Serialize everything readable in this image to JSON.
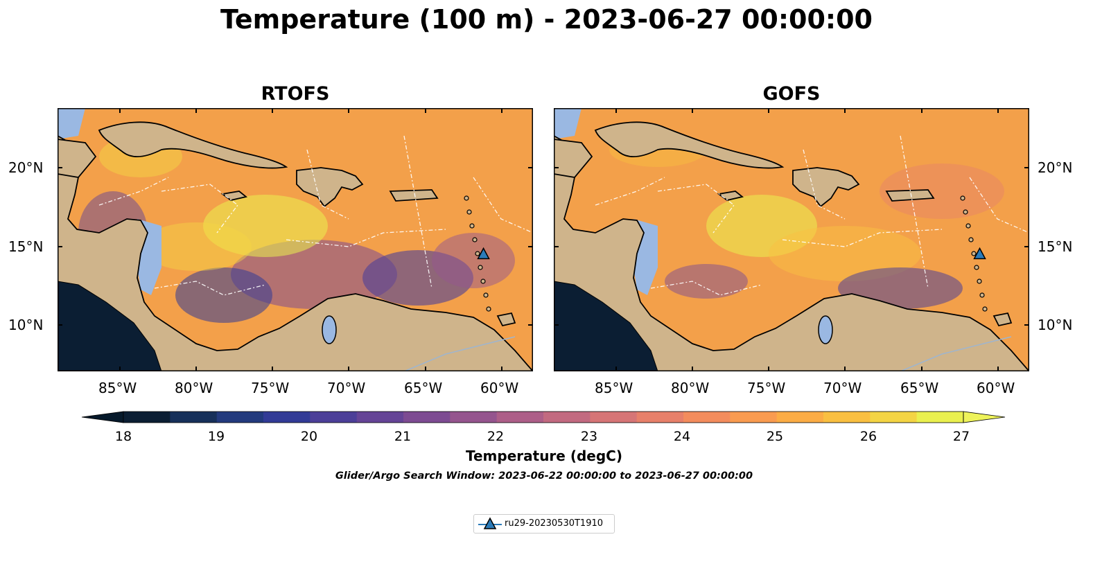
{
  "figure": {
    "title": "Temperature (100 m) - 2023-06-27 00:00:00",
    "subtitle": "Glider/Argo Search Window: 2023-06-22 00:00:00 to 2023-06-27 00:00:00"
  },
  "panels": [
    {
      "title": "RTOFS"
    },
    {
      "title": "GOFS"
    }
  ],
  "axes": {
    "lon_ticks": [
      "85°W",
      "80°W",
      "75°W",
      "70°W",
      "65°W",
      "60°W"
    ],
    "lat_ticks": [
      "20°N",
      "15°N",
      "10°N"
    ]
  },
  "colorbar": {
    "label": "Temperature (degC)",
    "ticks": [
      "18",
      "19",
      "20",
      "21",
      "22",
      "23",
      "24",
      "25",
      "26",
      "27"
    ],
    "colors": [
      "#0b1e33",
      "#17305a",
      "#233a7d",
      "#323b96",
      "#4c3f98",
      "#654496",
      "#7d4b92",
      "#95558e",
      "#ad5f88",
      "#c26a80",
      "#d67576",
      "#e7806a",
      "#f38c5d",
      "#f99b50",
      "#fbac45",
      "#f9bf41",
      "#f4d444",
      "#eaf04f"
    ],
    "min_color": "#06192b",
    "max_color": "#eef35a"
  },
  "colors": {
    "land": "#cfb48b",
    "ocean": "#9ab8e2",
    "deep_cold": "#0b1e33",
    "warm": "#f3a04a",
    "hot": "#eef35a",
    "glider_marker": "#2b7bb9"
  },
  "legend": {
    "glider": "ru29-20230530T1910",
    "glider_marker": "triangle-up"
  },
  "glider_position": {
    "lon": -61.2,
    "lat": 14.5
  }
}
